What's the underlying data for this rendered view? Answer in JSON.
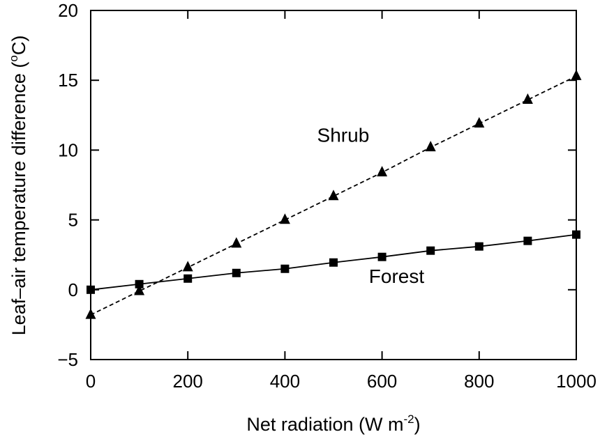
{
  "chart_data": {
    "type": "line",
    "title": "",
    "xlabel_main": "Net radiation (W m",
    "xlabel_sup": "-2",
    "xlabel_end": ")",
    "ylabel_main": "Leaf–air temperature difference (",
    "ylabel_sup": "o",
    "ylabel_end": "C)",
    "xlim": [
      0,
      1000
    ],
    "ylim": [
      -5,
      20
    ],
    "x_ticks": [
      0,
      200,
      400,
      600,
      800,
      1000
    ],
    "x_tick_labels": [
      "0",
      "200",
      "400",
      "600",
      "800",
      "1000"
    ],
    "y_ticks": [
      -5,
      0,
      5,
      10,
      15,
      20
    ],
    "y_tick_labels": [
      "−5",
      "0",
      "5",
      "10",
      "15",
      "20"
    ],
    "grid": false,
    "legend": "none",
    "series": [
      {
        "name": "Shrub",
        "marker": "triangle",
        "line_style": "dashed",
        "color": "#000000",
        "label_at": [
          520,
          10.6
        ],
        "x": [
          0,
          100,
          200,
          300,
          400,
          500,
          600,
          700,
          800,
          900,
          1000
        ],
        "y": [
          -1.8,
          -0.1,
          1.6,
          3.3,
          5.0,
          6.7,
          8.4,
          10.2,
          11.9,
          13.6,
          15.3
        ]
      },
      {
        "name": "Forest",
        "marker": "square",
        "line_style": "solid",
        "color": "#000000",
        "label_at": [
          630,
          0.5
        ],
        "x": [
          0,
          100,
          200,
          300,
          400,
          500,
          600,
          700,
          800,
          900,
          1000
        ],
        "y": [
          0.0,
          0.4,
          0.8,
          1.2,
          1.5,
          1.95,
          2.35,
          2.8,
          3.1,
          3.5,
          3.95
        ]
      }
    ]
  }
}
